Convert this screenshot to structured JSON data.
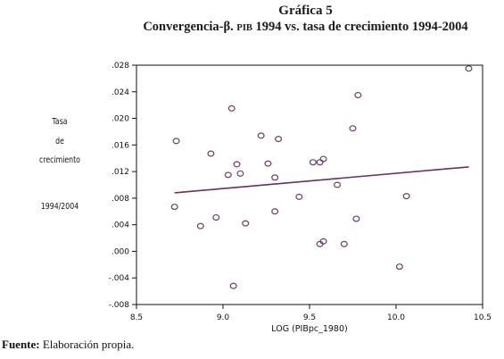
{
  "figure": {
    "title": "Gráfica 5",
    "subtitle_prefix": "Convergencia-β.",
    "subtitle_small": "PIB",
    "subtitle_rest": "1994 vs. tasa de crecimiento 1994-2004"
  },
  "source": {
    "label": "Fuente:",
    "text": "Elaboración propia."
  },
  "colors": {
    "marker": "#6b3a6b",
    "line": "#6b2f5f",
    "axis": "#111111"
  },
  "chart_data": {
    "type": "scatter",
    "title": "Convergencia-β. PIB 1994 vs. tasa de crecimiento 1994-2004",
    "xlabel": "LOG (PIBpc_1980)",
    "ylabel_lines": [
      "Tasa",
      "de",
      "crecimiento",
      "1994/2004"
    ],
    "xlim": [
      8.5,
      10.5
    ],
    "ylim": [
      -0.008,
      0.028
    ],
    "x_ticks": [
      8.5,
      9.0,
      9.5,
      10.0,
      10.5
    ],
    "x_tick_labels": [
      "8.5",
      "9.0",
      "9.5",
      "10.0",
      "10.5"
    ],
    "y_ticks": [
      -0.008,
      -0.004,
      0.0,
      0.004,
      0.008,
      0.012,
      0.016,
      0.02,
      0.024,
      0.028
    ],
    "y_tick_labels": [
      "-.008",
      "-.004",
      ".000",
      ".004",
      ".008",
      ".012",
      ".016",
      ".020",
      ".024",
      ".028"
    ],
    "grid": false,
    "points": [
      {
        "x": 8.72,
        "y": 0.0067
      },
      {
        "x": 8.73,
        "y": 0.0166
      },
      {
        "x": 8.87,
        "y": 0.0038
      },
      {
        "x": 8.93,
        "y": 0.0147
      },
      {
        "x": 8.96,
        "y": 0.0051
      },
      {
        "x": 9.03,
        "y": 0.0115
      },
      {
        "x": 9.05,
        "y": 0.0215
      },
      {
        "x": 9.06,
        "y": -0.0052
      },
      {
        "x": 9.08,
        "y": 0.0131
      },
      {
        "x": 9.1,
        "y": 0.0117
      },
      {
        "x": 9.13,
        "y": 0.0042
      },
      {
        "x": 9.22,
        "y": 0.0174
      },
      {
        "x": 9.26,
        "y": 0.0132
      },
      {
        "x": 9.3,
        "y": 0.006
      },
      {
        "x": 9.3,
        "y": 0.0111
      },
      {
        "x": 9.32,
        "y": 0.0169
      },
      {
        "x": 9.44,
        "y": 0.0082
      },
      {
        "x": 9.52,
        "y": 0.0134
      },
      {
        "x": 9.56,
        "y": 0.0134
      },
      {
        "x": 9.56,
        "y": 0.0011
      },
      {
        "x": 9.58,
        "y": 0.0015
      },
      {
        "x": 9.58,
        "y": 0.0139
      },
      {
        "x": 9.66,
        "y": 0.01
      },
      {
        "x": 9.7,
        "y": 0.0011
      },
      {
        "x": 9.75,
        "y": 0.0185
      },
      {
        "x": 9.77,
        "y": 0.0049
      },
      {
        "x": 9.78,
        "y": 0.0235
      },
      {
        "x": 10.02,
        "y": -0.0023
      },
      {
        "x": 10.06,
        "y": 0.0083
      },
      {
        "x": 10.42,
        "y": 0.0275
      }
    ],
    "fit_line": {
      "x": [
        8.72,
        10.42
      ],
      "y": [
        0.0088,
        0.0127
      ]
    }
  }
}
